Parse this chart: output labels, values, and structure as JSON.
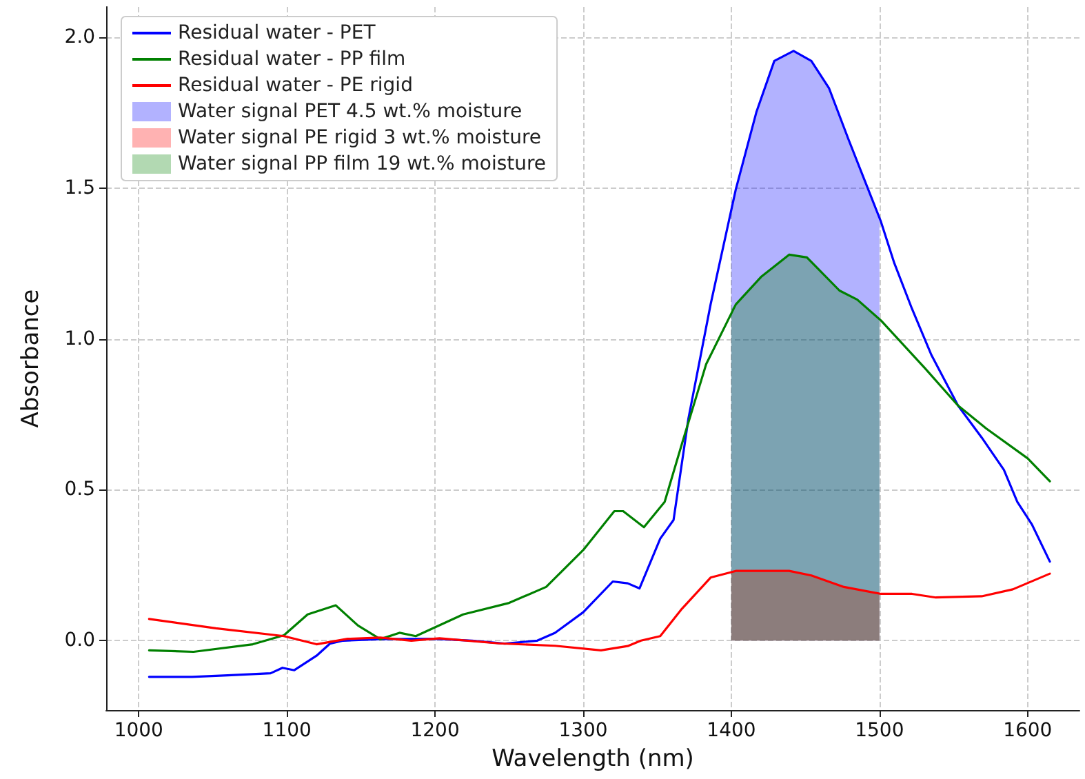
{
  "chart_data": {
    "type": "line",
    "xlabel": "Wavelength (nm)",
    "ylabel": "Absorbance",
    "xlim": [
      978,
      1635
    ],
    "xticks": [
      1000,
      1100,
      1200,
      1300,
      1400,
      1500,
      1600
    ],
    "ylim": [
      -0.23,
      2.1
    ],
    "yticks": [
      {
        "value": 0,
        "label": "0.0"
      },
      {
        "value": 0.5,
        "label": "0.5"
      },
      {
        "value": 1,
        "label": "1.0"
      },
      {
        "value": 1.5,
        "label": "1.5"
      },
      {
        "value": 2,
        "label": "2.0"
      }
    ],
    "grid": true,
    "legend": "top left",
    "marker": "none",
    "line_style": "solid",
    "series": [
      {
        "name": "Residual water - PET",
        "color": "#0000ff",
        "x": [
          1007,
          1036,
          1060,
          1089,
          1097,
          1105,
          1120,
          1129,
          1138,
          1163,
          1200,
          1225,
          1247,
          1269,
          1281,
          1300,
          1320,
          1330,
          1338,
          1352,
          1361,
          1371,
          1386,
          1403,
          1417,
          1429,
          1442,
          1454,
          1466,
          1479,
          1501,
          1510,
          1522,
          1535,
          1553,
          1569,
          1584,
          1593,
          1603,
          1615
        ],
        "values": [
          -0.12,
          -0.12,
          -0.115,
          -0.108,
          -0.09,
          -0.098,
          -0.05,
          -0.01,
          0.0,
          0.005,
          0.006,
          0.0,
          -0.01,
          0.0,
          0.026,
          0.094,
          0.196,
          0.19,
          0.173,
          0.338,
          0.4,
          0.735,
          1.114,
          1.495,
          1.753,
          1.921,
          1.954,
          1.921,
          1.83,
          1.662,
          1.388,
          1.251,
          1.099,
          0.947,
          0.779,
          0.673,
          0.566,
          0.46,
          0.384,
          0.262
        ]
      },
      {
        "name": "Residual water - PP film",
        "color": "#008000",
        "x": [
          1007,
          1037,
          1077,
          1098,
          1114,
          1133,
          1148,
          1163,
          1176,
          1187,
          1219,
          1250,
          1275,
          1300,
          1321,
          1327,
          1341,
          1355,
          1367,
          1383,
          1403,
          1420,
          1439,
          1451,
          1473,
          1485,
          1501,
          1531,
          1553,
          1572,
          1600,
          1615
        ],
        "values": [
          -0.032,
          -0.037,
          -0.012,
          0.018,
          0.087,
          0.117,
          0.05,
          0.005,
          0.026,
          0.015,
          0.087,
          0.125,
          0.178,
          0.3,
          0.429,
          0.429,
          0.376,
          0.46,
          0.658,
          0.916,
          1.114,
          1.205,
          1.279,
          1.27,
          1.16,
          1.13,
          1.061,
          0.901,
          0.779,
          0.703,
          0.604,
          0.528
        ]
      },
      {
        "name": "Residual water - PE rigid",
        "color": "#ff0000",
        "x": [
          1007,
          1052,
          1098,
          1120,
          1141,
          1163,
          1184,
          1203,
          1243,
          1281,
          1312,
          1330,
          1339,
          1352,
          1366,
          1386,
          1403,
          1439,
          1454,
          1476,
          1501,
          1522,
          1538,
          1569,
          1590,
          1615
        ],
        "values": [
          0.072,
          0.041,
          0.015,
          -0.012,
          0.006,
          0.01,
          0.0,
          0.008,
          -0.009,
          -0.017,
          -0.032,
          -0.018,
          0.0,
          0.015,
          0.102,
          0.209,
          0.231,
          0.231,
          0.216,
          0.178,
          0.155,
          0.155,
          0.143,
          0.147,
          0.17,
          0.222
        ]
      },
      {
        "name": "Water signal PET 4.5 wt.% moisture",
        "type": "area",
        "color": "#0000ff",
        "x": [
          1400,
          1403,
          1417,
          1429,
          1442,
          1454,
          1466,
          1479,
          1500
        ],
        "values": [
          1.45,
          1.495,
          1.753,
          1.921,
          1.954,
          1.921,
          1.83,
          1.662,
          1.39
        ]
      },
      {
        "name": "Water signal PE rigid 3 wt.% moisture",
        "type": "area",
        "color": "#ff0000",
        "x": [
          1400,
          1403,
          1439,
          1454,
          1476,
          1500
        ],
        "values": [
          0.23,
          0.231,
          0.231,
          0.216,
          0.178,
          0.155
        ]
      },
      {
        "name": "Water signal PP film 19 wt.% moisture",
        "type": "area",
        "color": "#008000",
        "x": [
          1400,
          1403,
          1420,
          1439,
          1451,
          1473,
          1485,
          1500
        ],
        "values": [
          1.1,
          1.114,
          1.205,
          1.279,
          1.27,
          1.16,
          1.13,
          1.061
        ]
      }
    ]
  }
}
